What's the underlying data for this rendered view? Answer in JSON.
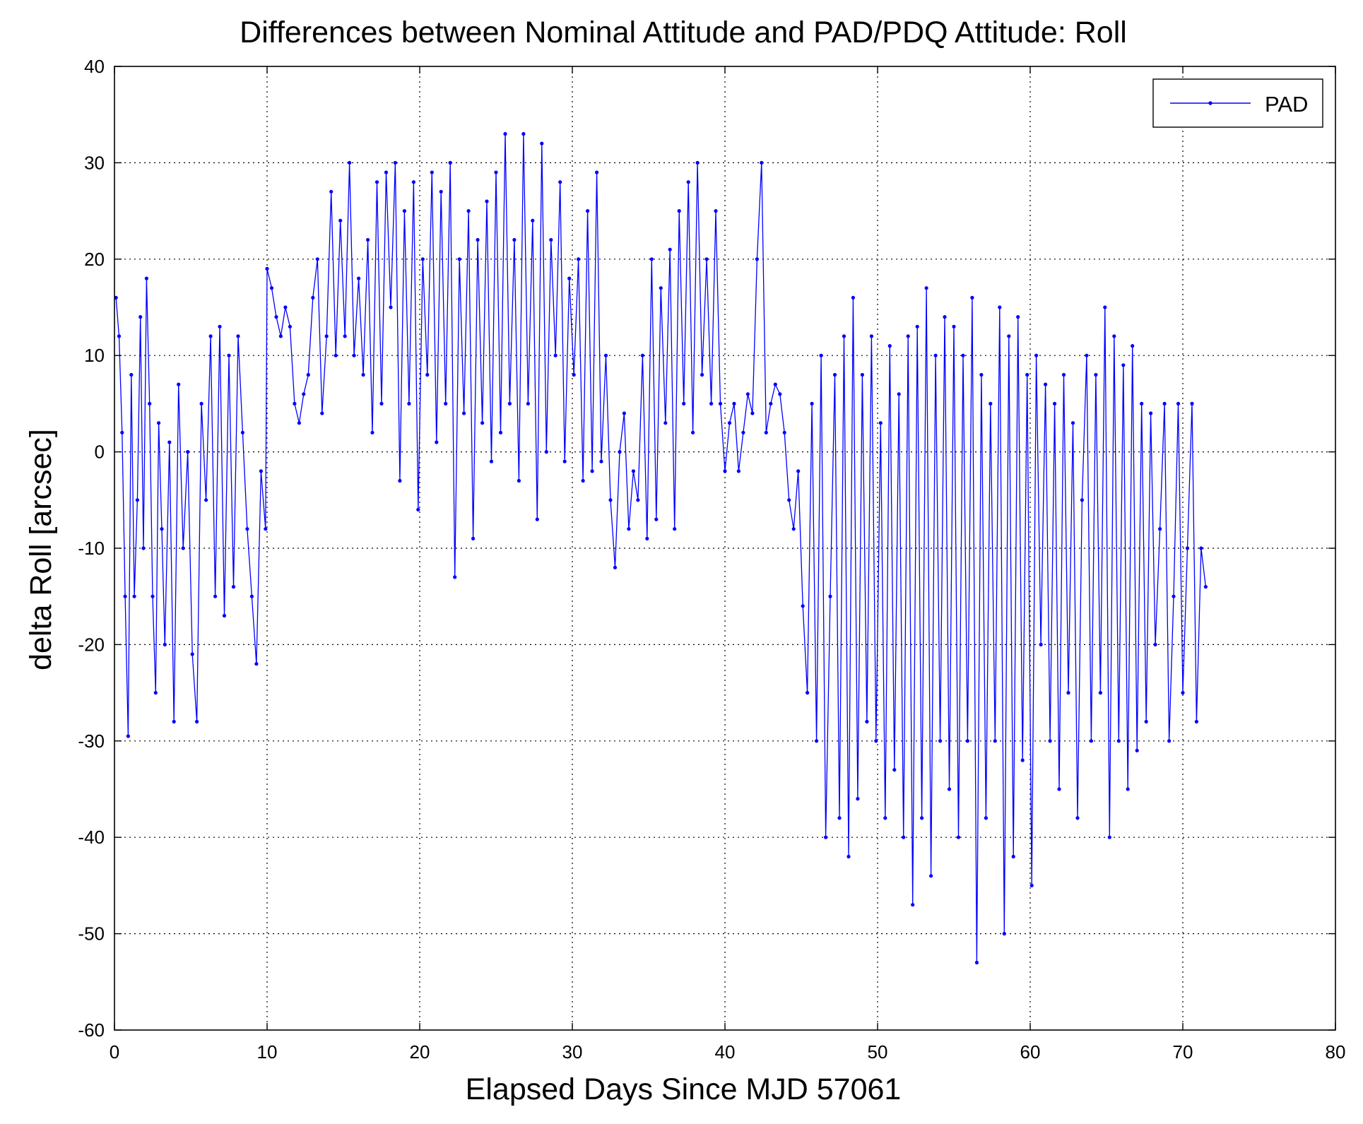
{
  "chart_data": {
    "type": "line",
    "title": "Differences between Nominal Attitude and PAD/PDQ Attitude: Roll",
    "xlabel": "Elapsed Days Since MJD 57061",
    "ylabel": "delta Roll [arcsec]",
    "xlim": [
      0,
      80
    ],
    "ylim": [
      -60,
      40
    ],
    "xticks": [
      0,
      10,
      20,
      30,
      40,
      50,
      60,
      70,
      80
    ],
    "yticks": [
      -60,
      -50,
      -40,
      -30,
      -20,
      -10,
      0,
      10,
      20,
      30,
      40
    ],
    "xtick_labels": [
      "0",
      "10",
      "20",
      "30",
      "40",
      "50",
      "60",
      "70",
      "80"
    ],
    "ytick_labels": [
      "-60",
      "-50",
      "-40",
      "-30",
      "-20",
      "-10",
      "0",
      "10",
      "20",
      "30",
      "40"
    ],
    "grid": true,
    "legend": {
      "position": "top-right",
      "entries": [
        "PAD"
      ]
    },
    "series": [
      {
        "name": "PAD",
        "color": "#0000ff",
        "marker": "dot",
        "points": [
          [
            0.1,
            16
          ],
          [
            0.3,
            12
          ],
          [
            0.5,
            2
          ],
          [
            0.7,
            -15
          ],
          [
            0.9,
            -29.5
          ],
          [
            1.1,
            8
          ],
          [
            1.3,
            -15
          ],
          [
            1.5,
            -5
          ],
          [
            1.7,
            14
          ],
          [
            1.9,
            -10
          ],
          [
            2.1,
            18
          ],
          [
            2.3,
            5
          ],
          [
            2.5,
            -15
          ],
          [
            2.7,
            -25
          ],
          [
            2.9,
            3
          ],
          [
            3.1,
            -8
          ],
          [
            3.3,
            -20
          ],
          [
            3.6,
            1
          ],
          [
            3.9,
            -28
          ],
          [
            4.2,
            7
          ],
          [
            4.5,
            -10
          ],
          [
            4.8,
            0
          ],
          [
            5.1,
            -21
          ],
          [
            5.4,
            -28
          ],
          [
            5.7,
            5
          ],
          [
            6.0,
            -5
          ],
          [
            6.3,
            12
          ],
          [
            6.6,
            -15
          ],
          [
            6.9,
            13
          ],
          [
            7.2,
            -17
          ],
          [
            7.5,
            10
          ],
          [
            7.8,
            -14
          ],
          [
            8.1,
            12
          ],
          [
            8.4,
            2
          ],
          [
            8.7,
            -8
          ],
          [
            9.0,
            -15
          ],
          [
            9.3,
            -22
          ],
          [
            9.6,
            -2
          ],
          [
            9.9,
            -8
          ],
          [
            10.0,
            19
          ],
          [
            10.3,
            17
          ],
          [
            10.6,
            14
          ],
          [
            10.9,
            12
          ],
          [
            11.2,
            15
          ],
          [
            11.5,
            13
          ],
          [
            11.8,
            5
          ],
          [
            12.1,
            3
          ],
          [
            12.4,
            6
          ],
          [
            12.7,
            8
          ],
          [
            13.0,
            16
          ],
          [
            13.3,
            20
          ],
          [
            13.6,
            4
          ],
          [
            13.9,
            12
          ],
          [
            14.2,
            27
          ],
          [
            14.5,
            10
          ],
          [
            14.8,
            24
          ],
          [
            15.1,
            12
          ],
          [
            15.4,
            30
          ],
          [
            15.7,
            10
          ],
          [
            16.0,
            18
          ],
          [
            16.3,
            8
          ],
          [
            16.6,
            22
          ],
          [
            16.9,
            2
          ],
          [
            17.2,
            28
          ],
          [
            17.5,
            5
          ],
          [
            17.8,
            29
          ],
          [
            18.1,
            15
          ],
          [
            18.4,
            30
          ],
          [
            18.7,
            -3
          ],
          [
            19.0,
            25
          ],
          [
            19.3,
            5
          ],
          [
            19.6,
            28
          ],
          [
            19.9,
            -6
          ],
          [
            20.2,
            20
          ],
          [
            20.5,
            8
          ],
          [
            20.8,
            29
          ],
          [
            21.1,
            1
          ],
          [
            21.4,
            27
          ],
          [
            21.7,
            5
          ],
          [
            22.0,
            30
          ],
          [
            22.3,
            -13
          ],
          [
            22.6,
            20
          ],
          [
            22.9,
            4
          ],
          [
            23.2,
            25
          ],
          [
            23.5,
            -9
          ],
          [
            23.8,
            22
          ],
          [
            24.1,
            3
          ],
          [
            24.4,
            26
          ],
          [
            24.7,
            -1
          ],
          [
            25.0,
            29
          ],
          [
            25.3,
            2
          ],
          [
            25.6,
            33
          ],
          [
            25.9,
            5
          ],
          [
            26.2,
            22
          ],
          [
            26.5,
            -3
          ],
          [
            26.8,
            33
          ],
          [
            27.1,
            5
          ],
          [
            27.4,
            24
          ],
          [
            27.7,
            -7
          ],
          [
            28.0,
            32
          ],
          [
            28.3,
            0
          ],
          [
            28.6,
            22
          ],
          [
            28.9,
            10
          ],
          [
            29.2,
            28
          ],
          [
            29.5,
            -1
          ],
          [
            29.8,
            18
          ],
          [
            30.1,
            8
          ],
          [
            30.4,
            20
          ],
          [
            30.7,
            -3
          ],
          [
            31.0,
            25
          ],
          [
            31.3,
            -2
          ],
          [
            31.6,
            29
          ],
          [
            31.9,
            -1
          ],
          [
            32.2,
            10
          ],
          [
            32.5,
            -5
          ],
          [
            32.8,
            -12
          ],
          [
            33.1,
            0
          ],
          [
            33.4,
            4
          ],
          [
            33.7,
            -8
          ],
          [
            34.0,
            -2
          ],
          [
            34.3,
            -5
          ],
          [
            34.6,
            10
          ],
          [
            34.9,
            -9
          ],
          [
            35.2,
            20
          ],
          [
            35.5,
            -7
          ],
          [
            35.8,
            17
          ],
          [
            36.1,
            3
          ],
          [
            36.4,
            21
          ],
          [
            36.7,
            -8
          ],
          [
            37.0,
            25
          ],
          [
            37.3,
            5
          ],
          [
            37.6,
            28
          ],
          [
            37.9,
            2
          ],
          [
            38.2,
            30
          ],
          [
            38.5,
            8
          ],
          [
            38.8,
            20
          ],
          [
            39.1,
            5
          ],
          [
            39.4,
            25
          ],
          [
            39.7,
            5
          ],
          [
            40.0,
            -2
          ],
          [
            40.3,
            3
          ],
          [
            40.6,
            5
          ],
          [
            40.9,
            -2
          ],
          [
            41.2,
            2
          ],
          [
            41.5,
            6
          ],
          [
            41.8,
            4
          ],
          [
            42.1,
            20
          ],
          [
            42.4,
            30
          ],
          [
            42.7,
            2
          ],
          [
            43.0,
            5
          ],
          [
            43.3,
            7
          ],
          [
            43.6,
            6
          ],
          [
            43.9,
            2
          ],
          [
            44.2,
            -5
          ],
          [
            44.5,
            -8
          ],
          [
            44.8,
            -2
          ],
          [
            45.1,
            -16
          ],
          [
            45.4,
            -25
          ],
          [
            45.7,
            5
          ],
          [
            46.0,
            -30
          ],
          [
            46.3,
            10
          ],
          [
            46.6,
            -40
          ],
          [
            46.9,
            -15
          ],
          [
            47.2,
            8
          ],
          [
            47.5,
            -38
          ],
          [
            47.8,
            12
          ],
          [
            48.1,
            -42
          ],
          [
            48.4,
            16
          ],
          [
            48.7,
            -36
          ],
          [
            49.0,
            8
          ],
          [
            49.3,
            -28
          ],
          [
            49.6,
            12
          ],
          [
            49.9,
            -30
          ],
          [
            50.2,
            3
          ],
          [
            50.5,
            -38
          ],
          [
            50.8,
            11
          ],
          [
            51.1,
            -33
          ],
          [
            51.4,
            6
          ],
          [
            51.7,
            -40
          ],
          [
            52.0,
            12
          ],
          [
            52.3,
            -47
          ],
          [
            52.6,
            13
          ],
          [
            52.9,
            -38
          ],
          [
            53.2,
            17
          ],
          [
            53.5,
            -44
          ],
          [
            53.8,
            10
          ],
          [
            54.1,
            -30
          ],
          [
            54.4,
            14
          ],
          [
            54.7,
            -35
          ],
          [
            55.0,
            13
          ],
          [
            55.3,
            -40
          ],
          [
            55.6,
            10
          ],
          [
            55.9,
            -30
          ],
          [
            56.2,
            16
          ],
          [
            56.5,
            -53
          ],
          [
            56.8,
            8
          ],
          [
            57.1,
            -38
          ],
          [
            57.4,
            5
          ],
          [
            57.7,
            -30
          ],
          [
            58.0,
            15
          ],
          [
            58.3,
            -50
          ],
          [
            58.6,
            12
          ],
          [
            58.9,
            -42
          ],
          [
            59.2,
            14
          ],
          [
            59.5,
            -32
          ],
          [
            59.8,
            8
          ],
          [
            60.1,
            -45
          ],
          [
            60.4,
            10
          ],
          [
            60.7,
            -20
          ],
          [
            61.0,
            7
          ],
          [
            61.3,
            -30
          ],
          [
            61.6,
            5
          ],
          [
            61.9,
            -35
          ],
          [
            62.2,
            8
          ],
          [
            62.5,
            -25
          ],
          [
            62.8,
            3
          ],
          [
            63.1,
            -38
          ],
          [
            63.4,
            -5
          ],
          [
            63.7,
            10
          ],
          [
            64.0,
            -30
          ],
          [
            64.3,
            8
          ],
          [
            64.6,
            -25
          ],
          [
            64.9,
            15
          ],
          [
            65.2,
            -40
          ],
          [
            65.5,
            12
          ],
          [
            65.8,
            -30
          ],
          [
            66.1,
            9
          ],
          [
            66.4,
            -35
          ],
          [
            66.7,
            11
          ],
          [
            67.0,
            -31
          ],
          [
            67.3,
            5
          ],
          [
            67.6,
            -28
          ],
          [
            67.9,
            4
          ],
          [
            68.2,
            -20
          ],
          [
            68.5,
            -8
          ],
          [
            68.8,
            5
          ],
          [
            69.1,
            -30
          ],
          [
            69.4,
            -15
          ],
          [
            69.7,
            5
          ],
          [
            70.0,
            -25
          ],
          [
            70.3,
            -10
          ],
          [
            70.6,
            5
          ],
          [
            70.9,
            -28
          ],
          [
            71.2,
            -10
          ],
          [
            71.5,
            -14
          ]
        ]
      }
    ]
  }
}
